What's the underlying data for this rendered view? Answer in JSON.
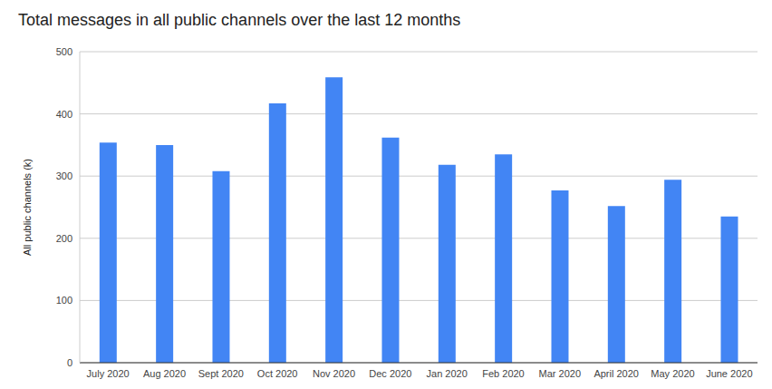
{
  "chart_data": {
    "type": "bar",
    "title": "Total messages in all public channels over the last 12 months",
    "y_label": "All public channels (k)",
    "categories": [
      "July 2020",
      "Aug 2020",
      "Sept 2020",
      "Oct 2020",
      "Nov 2020",
      "Dec 2020",
      "Jan 2020",
      "Feb 2020",
      "Mar 2020",
      "April 2020",
      "May 2020",
      "June 2020"
    ],
    "values": [
      354,
      350,
      308,
      417,
      459,
      362,
      318,
      335,
      277,
      252,
      294,
      235
    ],
    "color": "#4285f4",
    "ylim": [
      0,
      500
    ],
    "yticks": [
      0,
      100,
      200,
      300,
      400,
      500
    ],
    "grid": true
  }
}
